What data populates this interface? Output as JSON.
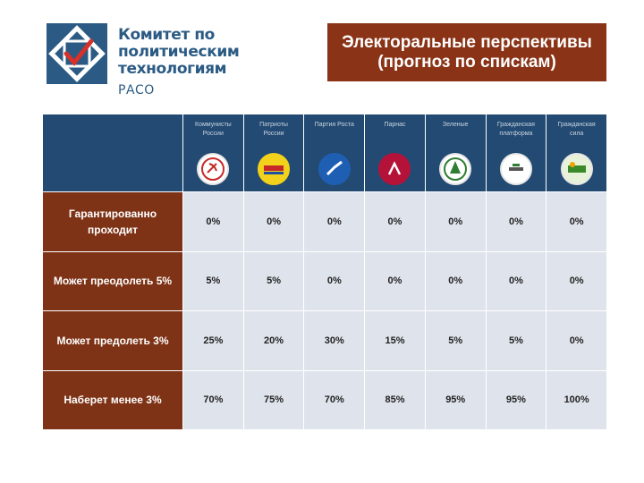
{
  "header": {
    "org_name_line1": "Комитет по политическим",
    "org_name_line2": "технологиям",
    "org_abbr": "РАСО",
    "title_line1": "Электоральные перспективы",
    "title_line2": "(прогноз по спискам)"
  },
  "colors": {
    "brand_blue": "#2b5b84",
    "title_brown": "#8a3316",
    "table_header": "#234a72",
    "row_label": "#7e3316",
    "cell_bg": "#dfe4ec"
  },
  "table": {
    "parties": [
      {
        "name_line1": "Коммунисты",
        "name_line2": "России",
        "logo_icon": "communists-of-russia-logo-icon"
      },
      {
        "name_line1": "Патриоты",
        "name_line2": "России",
        "logo_icon": "patriots-of-russia-logo-icon"
      },
      {
        "name_line1": "Партия Роста",
        "name_line2": "",
        "logo_icon": "party-of-growth-logo-icon"
      },
      {
        "name_line1": "Парнас",
        "name_line2": "",
        "logo_icon": "parnas-logo-icon"
      },
      {
        "name_line1": "Зеленые",
        "name_line2": "",
        "logo_icon": "greens-logo-icon"
      },
      {
        "name_line1": "Гражданская",
        "name_line2": "платформа",
        "logo_icon": "civic-platform-logo-icon"
      },
      {
        "name_line1": "Гражданская",
        "name_line2": "сила",
        "logo_icon": "civic-force-logo-icon"
      }
    ],
    "rows": [
      {
        "label": "Гарантированно проходит",
        "values": [
          "0%",
          "0%",
          "0%",
          "0%",
          "0%",
          "0%",
          "0%"
        ]
      },
      {
        "label": "Может преодолеть 5%",
        "values": [
          "5%",
          "5%",
          "0%",
          "0%",
          "0%",
          "0%",
          "0%"
        ]
      },
      {
        "label": "Может предолеть 3%",
        "values": [
          "25%",
          "20%",
          "30%",
          "15%",
          "5%",
          "5%",
          "0%"
        ]
      },
      {
        "label": "Наберет менее 3%",
        "values": [
          "70%",
          "75%",
          "70%",
          "85%",
          "95%",
          "95%",
          "100%"
        ]
      }
    ]
  }
}
